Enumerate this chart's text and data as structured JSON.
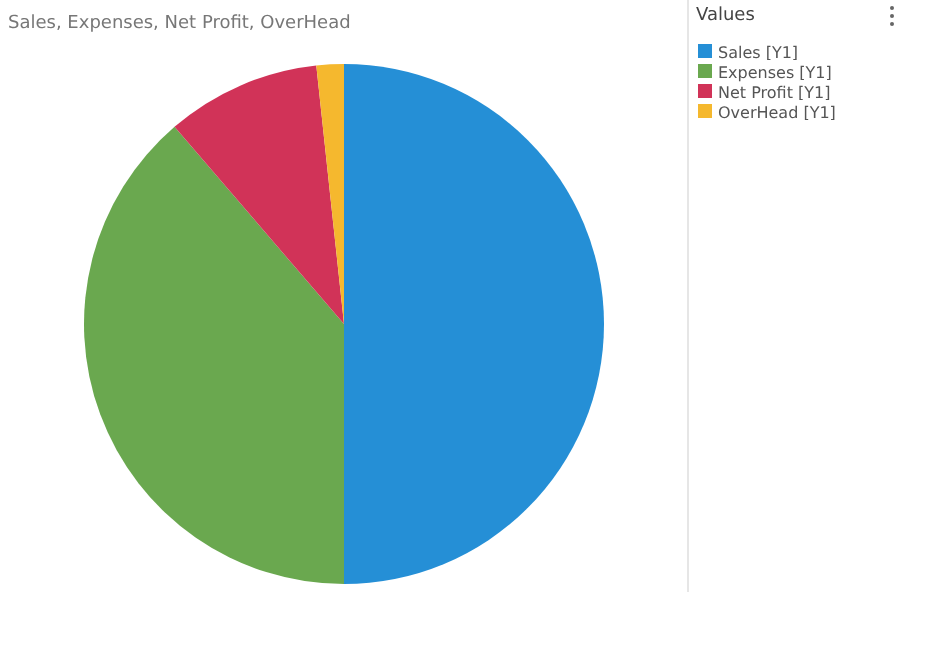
{
  "chart_data": {
    "type": "pie",
    "title": "Sales, Expenses, Net Profit, OverHead",
    "legend_title": "Values",
    "categories": [
      "Sales [Y1]",
      "Expenses [Y1]",
      "Net Profit [Y1]",
      "OverHead [Y1]"
    ],
    "values": [
      50,
      38.7,
      9.6,
      1.7
    ],
    "colors": [
      "#258fd6",
      "#6aa84f",
      "#d13358",
      "#f5b82e"
    ],
    "legend": "top right"
  }
}
